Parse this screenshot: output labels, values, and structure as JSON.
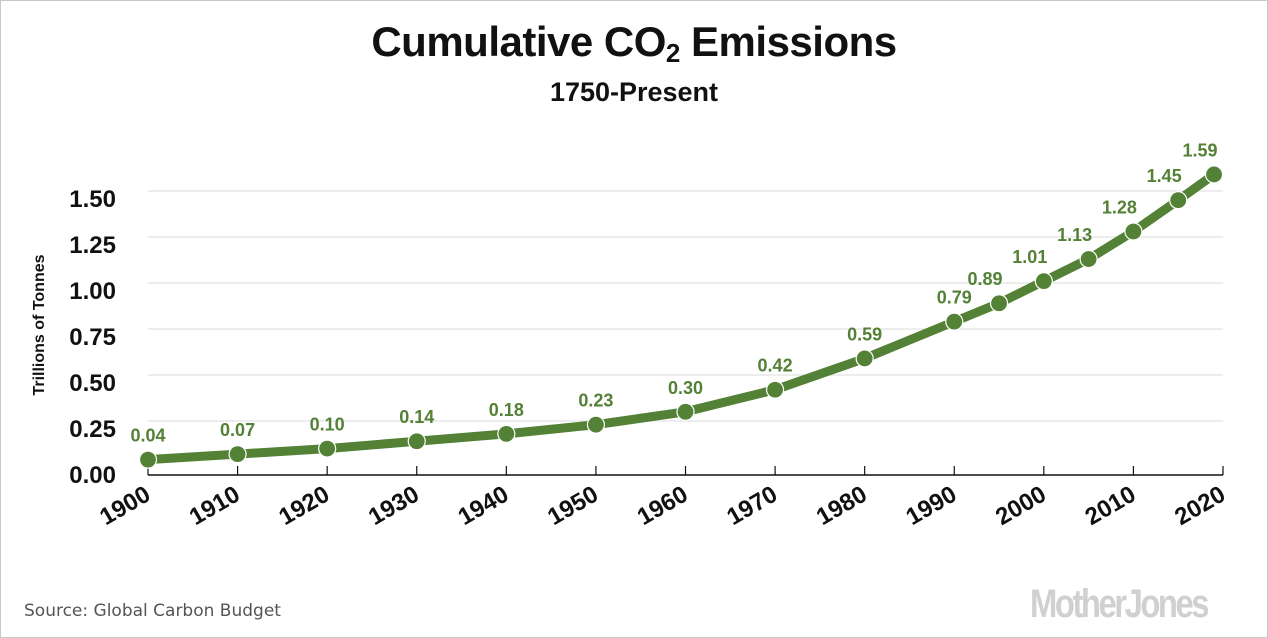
{
  "chart_data": {
    "type": "line",
    "title": "Cumulative CO",
    "title_subscript": "2",
    "title_suffix": " Emissions",
    "subtitle": "1750-Present",
    "xlabel": "",
    "ylabel": "Trillions of Tonnes",
    "xlim": [
      1900,
      2020
    ],
    "ylim": [
      0,
      1.5
    ],
    "grid": true,
    "x_ticks": [
      1900,
      1910,
      1920,
      1930,
      1940,
      1950,
      1960,
      1970,
      1980,
      1990,
      2000,
      2010,
      2020
    ],
    "x_tick_labels": [
      "1900",
      "1910",
      "1920",
      "1930",
      "1940",
      "1950",
      "1960",
      "1970",
      "1980",
      "1990",
      "2000",
      "2010",
      "2020"
    ],
    "y_ticks": [
      0,
      0.25,
      0.5,
      0.75,
      1.0,
      1.25,
      1.5
    ],
    "y_tick_labels": [
      "0.00",
      "0.25",
      "0.50",
      "0.75",
      "1.00",
      "1.25",
      "1.50"
    ],
    "series": [
      {
        "name": "Cumulative CO2 Emissions",
        "color": "#538135",
        "x": [
          1900,
          1910,
          1920,
          1930,
          1940,
          1950,
          1960,
          1970,
          1980,
          1990,
          1995,
          2000,
          2005,
          2010,
          2015,
          2019
        ],
        "values": [
          0.04,
          0.07,
          0.1,
          0.14,
          0.18,
          0.23,
          0.3,
          0.42,
          0.59,
          0.79,
          0.89,
          1.01,
          1.13,
          1.28,
          1.45,
          1.59
        ],
        "labels": [
          "0.04",
          "0.07",
          "0.10",
          "0.14",
          "0.18",
          "0.23",
          "0.30",
          "0.42",
          "0.59",
          "0.79",
          "0.89",
          "1.01",
          "1.13",
          "1.28",
          "1.45",
          "1.59"
        ]
      }
    ]
  },
  "footer": {
    "source": "Source: Global Carbon Budget",
    "logo": "MotherJones"
  }
}
